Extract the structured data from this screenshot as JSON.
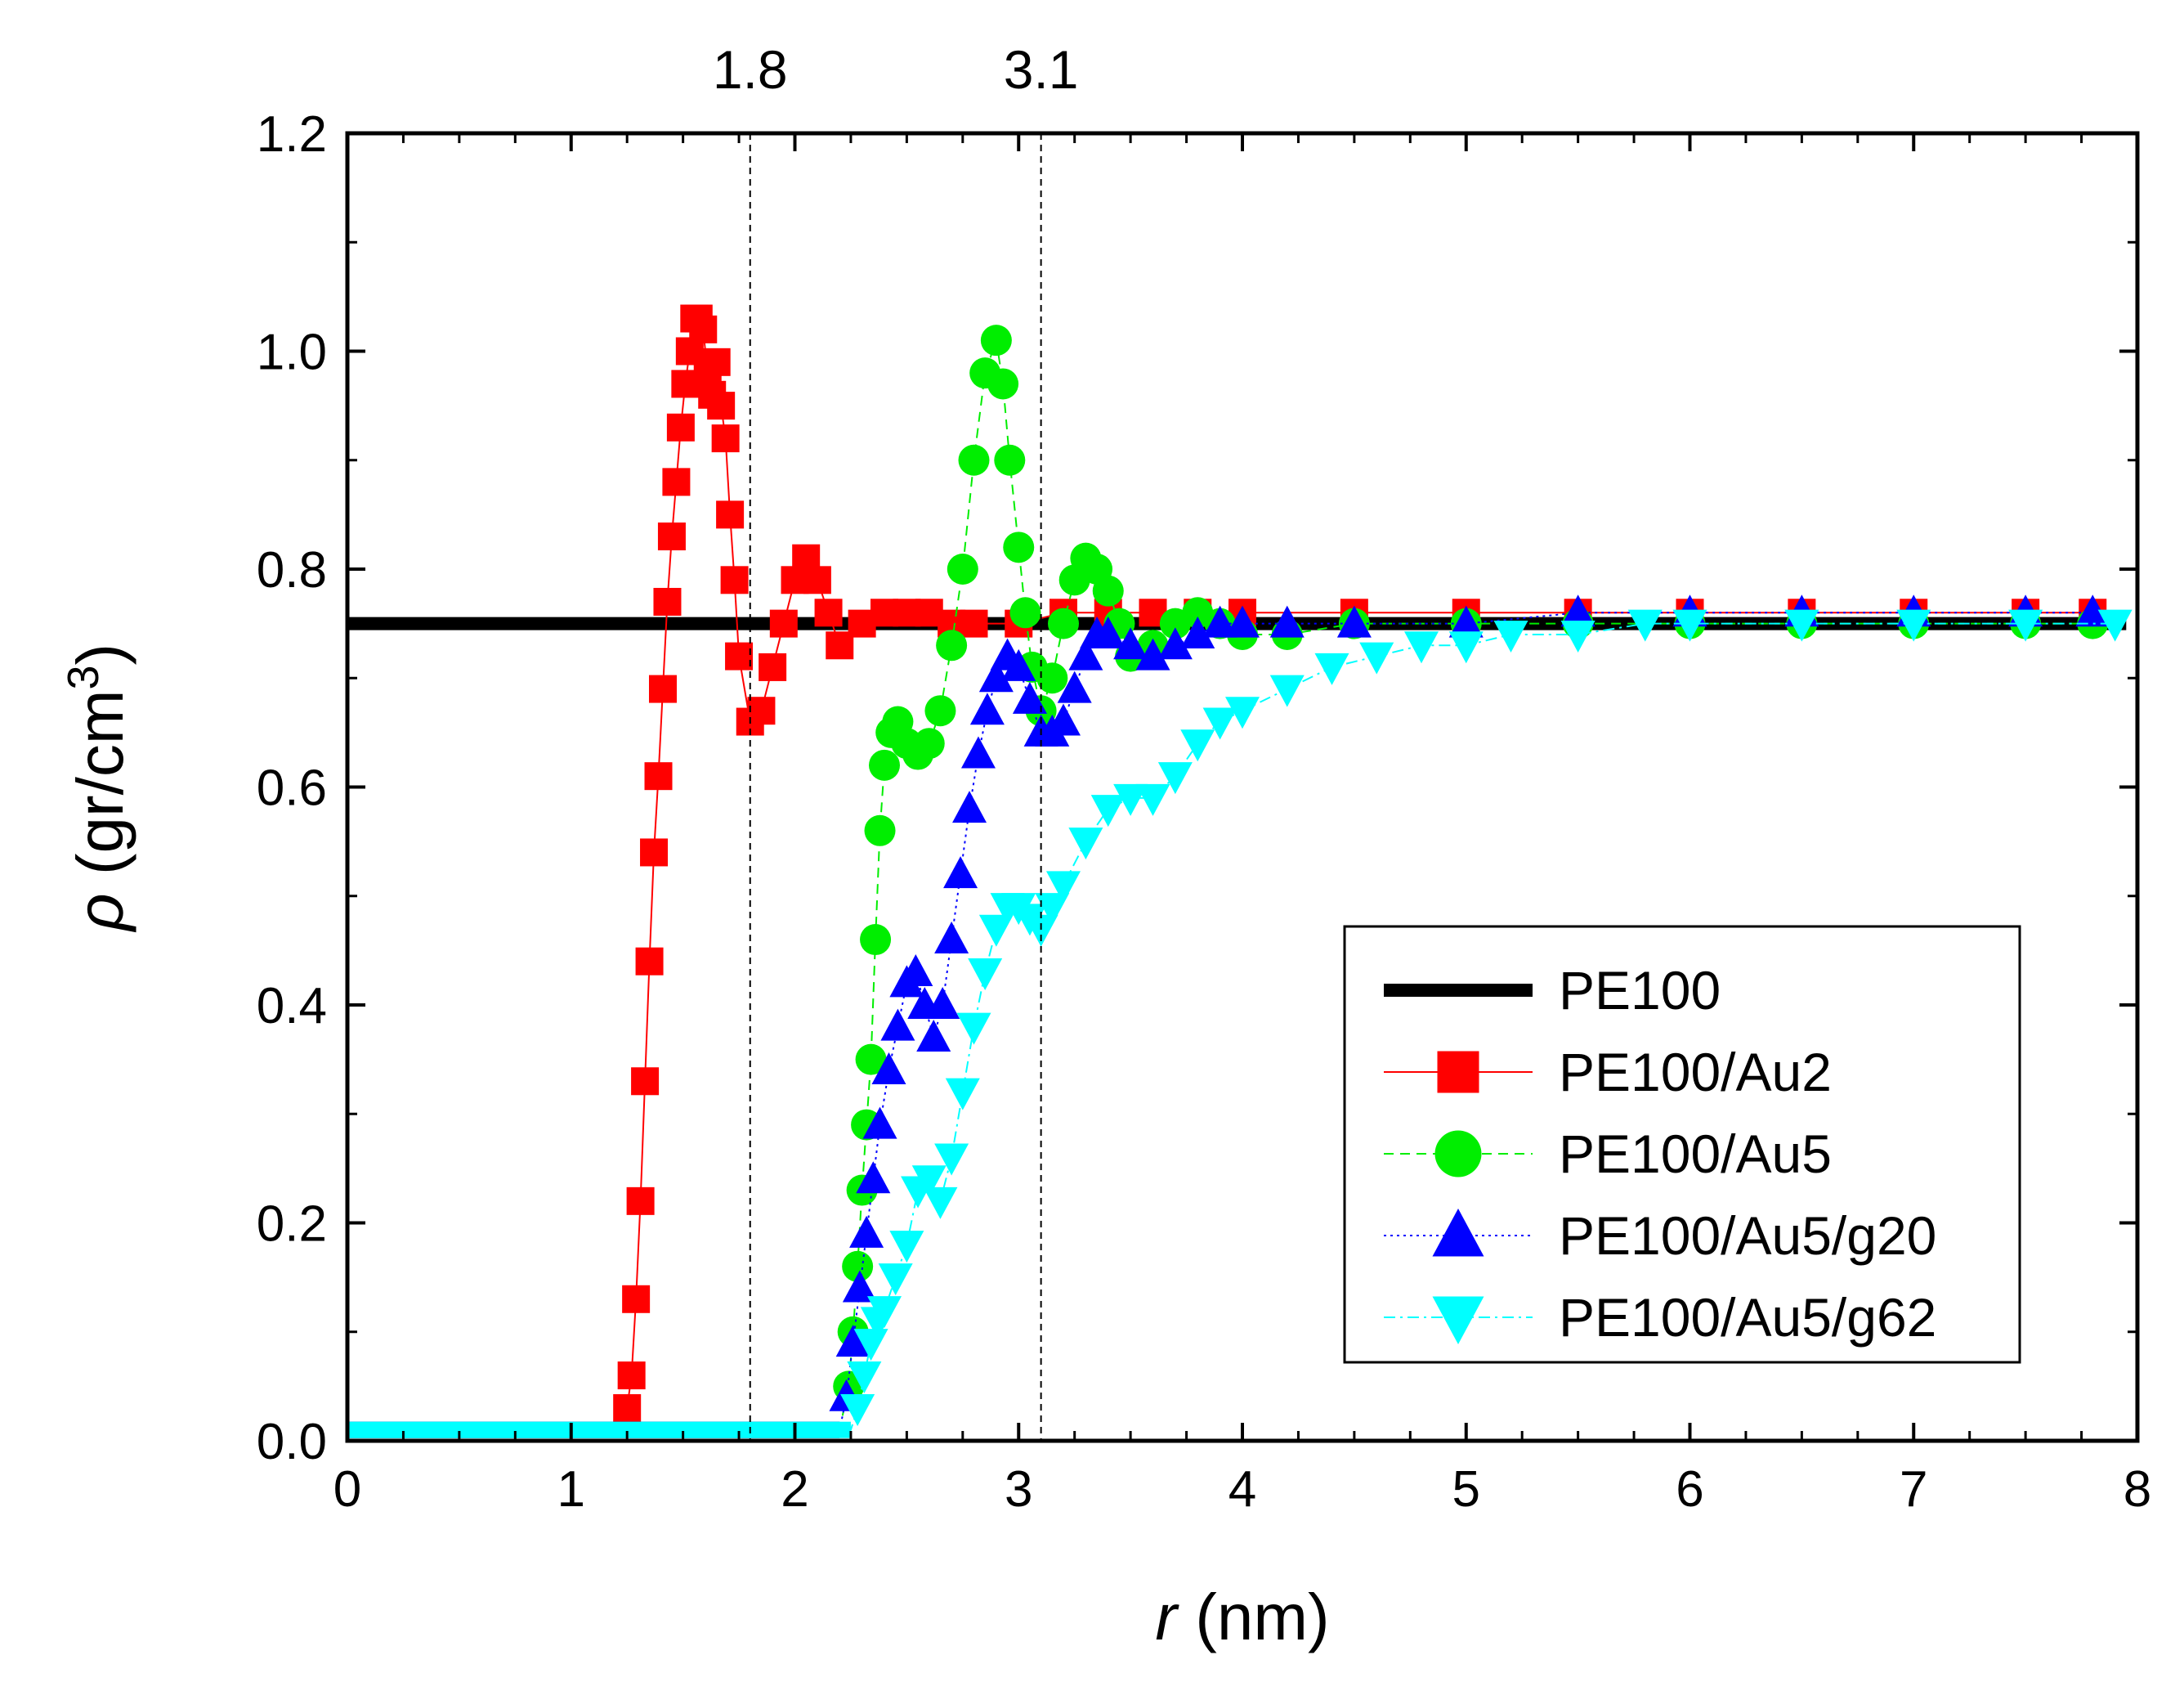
{
  "chart_data": {
    "type": "scatter",
    "title": "",
    "xlabel": {
      "var": "r",
      "unit": " (nm)"
    },
    "ylabel": {
      "var": "ρ",
      "unit": " (gr/cm",
      "sup": "3",
      "close": ")"
    },
    "xlim": [
      0,
      8
    ],
    "ylim": [
      0,
      1.2
    ],
    "xticks": [
      "0",
      "1",
      "2",
      "3",
      "4",
      "5",
      "6",
      "7",
      "8"
    ],
    "xtick_values": [
      0,
      1,
      2,
      3,
      4,
      5,
      6,
      7,
      8
    ],
    "yticks": [
      "0.0",
      "0.2",
      "0.4",
      "0.6",
      "0.8",
      "1.0",
      "1.2"
    ],
    "ytick_values": [
      0,
      0.2,
      0.4,
      0.6,
      0.8,
      1.0,
      1.2
    ],
    "annotations": [
      {
        "label": "1.8",
        "x": 1.8
      },
      {
        "label": "3.1",
        "x": 3.1
      }
    ],
    "legend_position": "bottom-right",
    "series": [
      {
        "name": "PE100",
        "color": "#000000",
        "marker": "none",
        "line": "solid-thick",
        "x": [
          0,
          7.95
        ],
        "y": [
          0.75,
          0.75
        ]
      },
      {
        "name": "PE100/Au2",
        "color": "#ff0000",
        "marker": "square",
        "line": "solid",
        "x": [
          1.25,
          1.27,
          1.29,
          1.31,
          1.33,
          1.35,
          1.37,
          1.39,
          1.41,
          1.43,
          1.45,
          1.47,
          1.49,
          1.51,
          1.53,
          1.55,
          1.57,
          1.59,
          1.61,
          1.63,
          1.65,
          1.67,
          1.69,
          1.71,
          1.73,
          1.75,
          1.8,
          1.85,
          1.9,
          1.95,
          2.0,
          2.05,
          2.1,
          2.15,
          2.2,
          2.3,
          2.4,
          2.5,
          2.6,
          2.7,
          2.8,
          3.0,
          3.2,
          3.4,
          3.6,
          3.8,
          4.0,
          4.5,
          5.0,
          5.5,
          6.0,
          6.5,
          7.0,
          7.5,
          7.8
        ],
        "y": [
          0.03,
          0.06,
          0.13,
          0.22,
          0.33,
          0.44,
          0.54,
          0.61,
          0.69,
          0.77,
          0.83,
          0.88,
          0.93,
          0.97,
          1.0,
          1.03,
          1.03,
          1.02,
          0.98,
          0.96,
          0.99,
          0.95,
          0.92,
          0.85,
          0.79,
          0.72,
          0.66,
          0.67,
          0.71,
          0.75,
          0.79,
          0.81,
          0.79,
          0.76,
          0.73,
          0.75,
          0.76,
          0.76,
          0.76,
          0.75,
          0.75,
          0.75,
          0.76,
          0.76,
          0.76,
          0.76,
          0.76,
          0.76,
          0.76,
          0.76,
          0.76,
          0.76,
          0.76,
          0.76,
          0.76
        ]
      },
      {
        "name": "PE100/Au5",
        "color": "#00ee00",
        "marker": "circle",
        "line": "dashed",
        "x": [
          0,
          2.2,
          2.24,
          2.26,
          2.28,
          2.3,
          2.32,
          2.34,
          2.36,
          2.38,
          2.4,
          2.43,
          2.46,
          2.5,
          2.55,
          2.6,
          2.65,
          2.7,
          2.75,
          2.8,
          2.85,
          2.9,
          2.93,
          2.96,
          3.0,
          3.03,
          3.06,
          3.1,
          3.15,
          3.2,
          3.25,
          3.3,
          3.35,
          3.4,
          3.45,
          3.5,
          3.6,
          3.7,
          3.8,
          3.9,
          4.0,
          4.2,
          4.5,
          5.0,
          5.5,
          6.0,
          6.5,
          7.0,
          7.5,
          7.8
        ],
        "y": [
          0.01,
          0.01,
          0.05,
          0.1,
          0.16,
          0.23,
          0.29,
          0.35,
          0.46,
          0.56,
          0.62,
          0.65,
          0.66,
          0.64,
          0.63,
          0.64,
          0.67,
          0.73,
          0.8,
          0.9,
          0.98,
          1.01,
          0.97,
          0.9,
          0.82,
          0.76,
          0.71,
          0.67,
          0.7,
          0.75,
          0.79,
          0.81,
          0.8,
          0.78,
          0.75,
          0.72,
          0.73,
          0.75,
          0.76,
          0.75,
          0.74,
          0.74,
          0.75,
          0.75,
          0.75,
          0.75,
          0.75,
          0.75,
          0.75,
          0.75
        ]
      },
      {
        "name": "PE100/Au5/g20",
        "color": "#0000ff",
        "marker": "triangle-up",
        "line": "dotted",
        "x": [
          0,
          2.2,
          2.23,
          2.26,
          2.29,
          2.32,
          2.35,
          2.38,
          2.42,
          2.46,
          2.5,
          2.54,
          2.58,
          2.62,
          2.66,
          2.7,
          2.74,
          2.78,
          2.82,
          2.86,
          2.9,
          2.95,
          3.0,
          3.05,
          3.1,
          3.15,
          3.2,
          3.25,
          3.3,
          3.35,
          3.4,
          3.5,
          3.6,
          3.7,
          3.8,
          3.9,
          4.0,
          4.2,
          4.5,
          5.0,
          5.5,
          6.0,
          6.5,
          7.0,
          7.5,
          7.8
        ],
        "y": [
          0.01,
          0.01,
          0.04,
          0.09,
          0.14,
          0.19,
          0.24,
          0.29,
          0.34,
          0.38,
          0.42,
          0.43,
          0.4,
          0.37,
          0.4,
          0.46,
          0.52,
          0.58,
          0.63,
          0.67,
          0.7,
          0.72,
          0.71,
          0.68,
          0.65,
          0.65,
          0.66,
          0.69,
          0.72,
          0.74,
          0.74,
          0.73,
          0.72,
          0.73,
          0.74,
          0.75,
          0.75,
          0.75,
          0.75,
          0.75,
          0.76,
          0.76,
          0.76,
          0.76,
          0.76,
          0.76
        ]
      },
      {
        "name": "PE100/Au5/g62",
        "color": "#00ffff",
        "marker": "triangle-down",
        "line": "dashdot",
        "x": [
          0,
          2.25,
          2.28,
          2.31,
          2.34,
          2.37,
          2.4,
          2.45,
          2.5,
          2.55,
          2.6,
          2.65,
          2.7,
          2.75,
          2.8,
          2.85,
          2.9,
          2.95,
          3.0,
          3.05,
          3.1,
          3.15,
          3.2,
          3.3,
          3.4,
          3.5,
          3.6,
          3.7,
          3.8,
          3.9,
          4.0,
          4.2,
          4.4,
          4.6,
          4.8,
          5.0,
          5.2,
          5.5,
          5.8,
          6.0,
          6.5,
          7.0,
          7.5,
          7.9
        ],
        "y": [
          0.01,
          0.01,
          0.03,
          0.06,
          0.09,
          0.11,
          0.12,
          0.15,
          0.18,
          0.23,
          0.24,
          0.22,
          0.26,
          0.32,
          0.38,
          0.43,
          0.47,
          0.49,
          0.49,
          0.48,
          0.47,
          0.49,
          0.51,
          0.55,
          0.58,
          0.59,
          0.59,
          0.61,
          0.64,
          0.66,
          0.67,
          0.69,
          0.71,
          0.72,
          0.73,
          0.73,
          0.74,
          0.74,
          0.75,
          0.75,
          0.75,
          0.75,
          0.75,
          0.75
        ]
      }
    ]
  }
}
